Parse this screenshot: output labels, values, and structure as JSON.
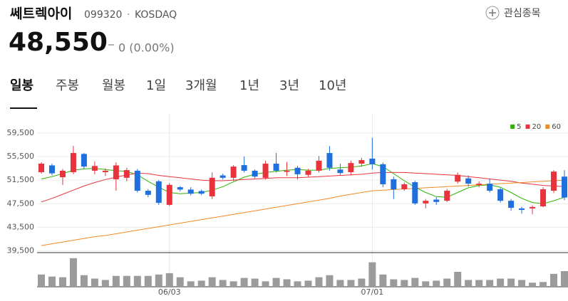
{
  "header": {
    "name": "쎄트렉아이",
    "code": "099320",
    "separator": "·",
    "market": "KOSDAQ",
    "watch": "관심종목",
    "price": "48,550",
    "change": "0 (0.00%)",
    "tabs": [
      "일봉",
      "주봉",
      "월봉",
      "1일",
      "3개월",
      "1년",
      "3년",
      "10년"
    ]
  },
  "chart_data": {
    "type": "candlestick",
    "categories": [
      null,
      null,
      null,
      null,
      null,
      null,
      null,
      null,
      null,
      null,
      null,
      null,
      "06/03",
      null,
      null,
      null,
      null,
      null,
      null,
      null,
      null,
      null,
      null,
      null,
      null,
      null,
      null,
      null,
      null,
      null,
      null,
      "07/01",
      null,
      null,
      null,
      null,
      null,
      null,
      null,
      null,
      null,
      null,
      null,
      null,
      null,
      null,
      null,
      null,
      null,
      null
    ],
    "open": [
      52850,
      54000,
      52000,
      52850,
      55950,
      53100,
      52850,
      51650,
      51900,
      53100,
      49700,
      51300,
      47300,
      50300,
      49900,
      49650,
      48750,
      52300,
      51900,
      54050,
      53100,
      51900,
      54300,
      52900,
      53600,
      52400,
      53100,
      56100,
      53300,
      52850,
      54300,
      55150,
      54200,
      51650,
      49950,
      51150,
      47550,
      48200,
      48000,
      51250,
      51800,
      50700,
      50900,
      49950,
      48000,
      46700,
      46700,
      47050,
      49700,
      52100
    ],
    "high": [
      54550,
      54300,
      53400,
      57300,
      56100,
      54700,
      53500,
      54500,
      53600,
      53400,
      50000,
      51500,
      51000,
      50500,
      50300,
      49900,
      52800,
      52600,
      54050,
      55500,
      53300,
      54800,
      56100,
      54600,
      53900,
      53400,
      55600,
      57300,
      54300,
      54800,
      55300,
      58700,
      54500,
      52100,
      51100,
      51400,
      48300,
      48600,
      50000,
      52800,
      52300,
      51300,
      51800,
      50200,
      48300,
      47000,
      47200,
      50300,
      53200,
      53200
    ],
    "low": [
      52600,
      52300,
      50700,
      52500,
      53400,
      52500,
      52200,
      49700,
      51300,
      49400,
      48600,
      47300,
      47100,
      49600,
      48900,
      48950,
      48300,
      51600,
      51350,
      52800,
      51800,
      51600,
      52800,
      52200,
      51600,
      52100,
      52800,
      53100,
      52400,
      52300,
      53800,
      53300,
      50300,
      48300,
      49700,
      47300,
      46700,
      47300,
      47800,
      50900,
      50400,
      50300,
      49400,
      47700,
      46300,
      45800,
      45700,
      46900,
      49300,
      48100
    ],
    "close": [
      54300,
      52650,
      53100,
      56100,
      53800,
      53900,
      53100,
      54000,
      53200,
      49700,
      49000,
      47650,
      50700,
      49900,
      49200,
      49200,
      51900,
      51900,
      53800,
      53100,
      52100,
      54300,
      53100,
      53100,
      52500,
      53100,
      54800,
      53600,
      52700,
      54400,
      54900,
      54200,
      50800,
      49950,
      50800,
      47550,
      48000,
      47800,
      49700,
      52400,
      50900,
      50900,
      49700,
      48000,
      46800,
      46450,
      46950,
      49950,
      52950,
      48550
    ],
    "up_color": "#e8333d",
    "down_color": "#1f6fde",
    "series": [
      {
        "name": "5",
        "color": "#2db400",
        "values": [
          51700,
          52100,
          52600,
          53200,
          53400,
          53500,
          53300,
          53100,
          53000,
          52400,
          51300,
          50300,
          49400,
          49200,
          49300,
          49400,
          49800,
          50400,
          51200,
          52000,
          52500,
          52800,
          53000,
          53200,
          53300,
          53200,
          53200,
          53500,
          53600,
          53700,
          53900,
          54300,
          53800,
          52600,
          51400,
          50300,
          49400,
          48700,
          48600,
          49400,
          50200,
          50600,
          50700,
          50300,
          49400,
          48400,
          47700,
          47500,
          48000,
          48600
        ]
      },
      {
        "name": "20",
        "color": "#e8333d",
        "values": [
          47800,
          48400,
          49100,
          49800,
          50500,
          51100,
          51600,
          52000,
          52400,
          52700,
          52600,
          52300,
          52100,
          51900,
          51700,
          51500,
          51400,
          51400,
          51500,
          51600,
          51700,
          51800,
          51900,
          51900,
          51900,
          52000,
          52100,
          52200,
          52300,
          52400,
          52500,
          52700,
          52800,
          52800,
          52800,
          52700,
          52600,
          52500,
          52400,
          52300,
          52100,
          51900,
          51700,
          51500,
          51300,
          51000,
          50800,
          50600,
          50500,
          50400
        ]
      },
      {
        "name": "60",
        "color": "#f08a24",
        "values": [
          40400,
          40700,
          41000,
          41300,
          41600,
          41900,
          42100,
          42400,
          42700,
          43000,
          43300,
          43600,
          43900,
          44200,
          44500,
          44800,
          45100,
          45400,
          45700,
          46000,
          46300,
          46600,
          46900,
          47200,
          47500,
          47800,
          48100,
          48400,
          48800,
          49100,
          49400,
          49700,
          49800,
          49900,
          50000,
          50100,
          50200,
          50300,
          50400,
          50500,
          50600,
          50700,
          50800,
          50900,
          51000,
          51100,
          51200,
          51300,
          51400,
          51500
        ]
      }
    ],
    "volume": [
      18,
      15,
      14,
      42,
      17,
      12,
      10,
      16,
      16,
      16,
      16,
      18,
      20,
      14,
      8,
      9,
      14,
      10,
      8,
      13,
      12,
      8,
      13,
      11,
      8,
      9,
      14,
      17,
      10,
      10,
      12,
      36,
      18,
      11,
      10,
      13,
      8,
      9,
      12,
      22,
      10,
      10,
      10,
      12,
      12,
      10,
      6,
      7,
      19,
      23
    ],
    "volume_color": "#9b9b9b",
    "volume_ylim": [
      0,
      45
    ],
    "ylim": [
      39200,
      61300
    ],
    "yticks": [
      {
        "value": 39500,
        "label": "39,500"
      },
      {
        "value": 43500,
        "label": "43,500"
      },
      {
        "value": 47500,
        "label": "47,500"
      },
      {
        "value": 51500,
        "label": "51,500"
      },
      {
        "value": 55500,
        "label": "55,500"
      },
      {
        "value": 59500,
        "label": "59,500"
      }
    ],
    "grid": true,
    "legend": "top-right"
  }
}
